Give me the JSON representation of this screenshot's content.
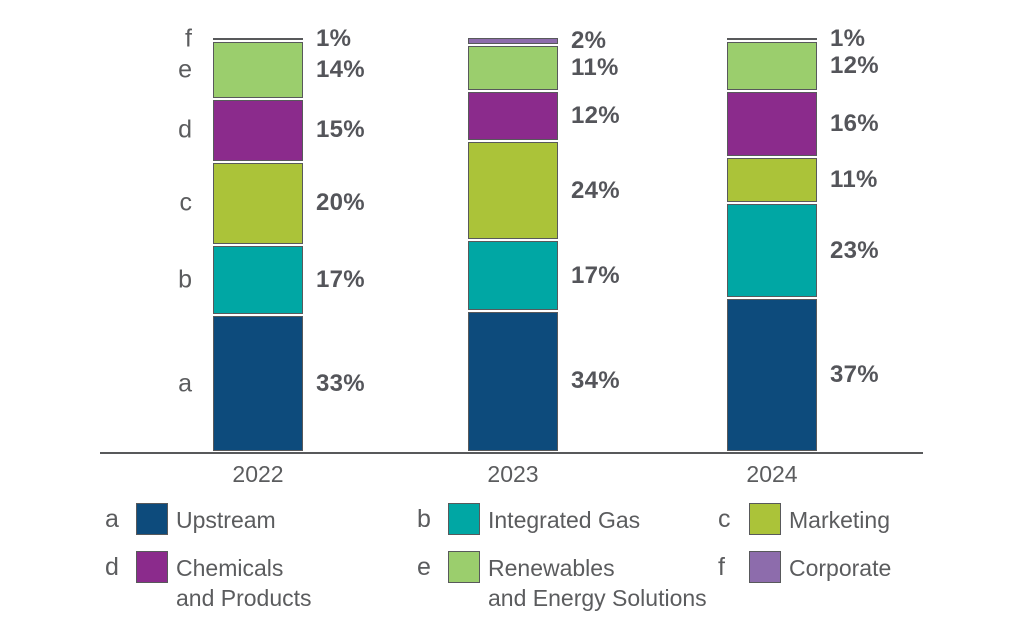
{
  "chart_data": {
    "type": "bar",
    "stacked": true,
    "title": "",
    "xlabel": "",
    "ylabel": "",
    "ylim": [
      0,
      100
    ],
    "grid": false,
    "value_format": "percent",
    "legend_position": "bottom",
    "categories": [
      "2022",
      "2023",
      "2024"
    ],
    "series": [
      {
        "key": "a",
        "name": "Upstream",
        "color": "#0d4b7c",
        "values": [
          33,
          34,
          37
        ]
      },
      {
        "key": "b",
        "name": "Integrated Gas",
        "color": "#00a7a4",
        "values": [
          17,
          17,
          23
        ]
      },
      {
        "key": "c",
        "name": "Marketing",
        "color": "#abc339",
        "values": [
          20,
          24,
          11
        ]
      },
      {
        "key": "d",
        "name": "Chemicals and Products",
        "color": "#8b2b8c",
        "values": [
          15,
          12,
          16
        ]
      },
      {
        "key": "e",
        "name": "Renewables and Energy Solutions",
        "color": "#9bce6d",
        "values": [
          14,
          11,
          12
        ]
      },
      {
        "key": "f",
        "name": "Corporate",
        "color": "#8d6cac",
        "values": [
          1,
          2,
          1
        ]
      }
    ]
  },
  "legend": {
    "items": [
      {
        "key": "a",
        "label_lines": [
          "Upstream"
        ]
      },
      {
        "key": "b",
        "label_lines": [
          "Integrated Gas"
        ]
      },
      {
        "key": "c",
        "label_lines": [
          "Marketing"
        ]
      },
      {
        "key": "d",
        "label_lines": [
          "Chemicals",
          "and Products"
        ]
      },
      {
        "key": "e",
        "label_lines": [
          "Renewables",
          "and Energy Solutions"
        ]
      },
      {
        "key": "f",
        "label_lines": [
          "Corporate"
        ]
      }
    ]
  },
  "colors": {
    "text_gray": "#58595b",
    "axis_line": "#58595b",
    "segment_border": "#58595b",
    "background": "#ffffff"
  }
}
